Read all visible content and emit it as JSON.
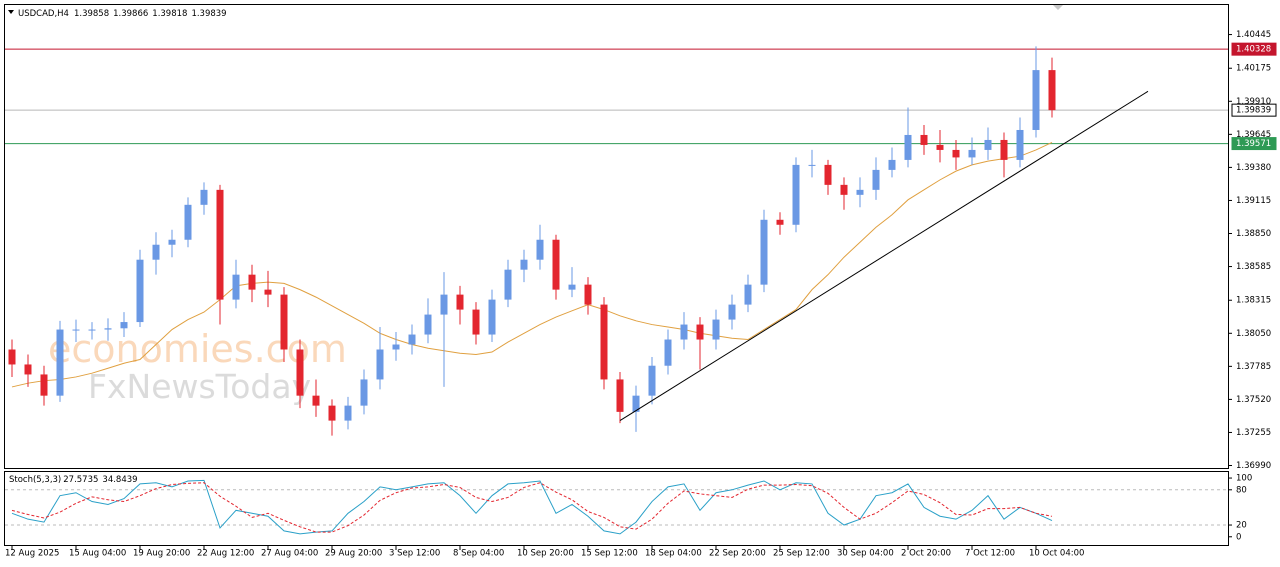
{
  "chart_data": [
    {
      "type": "candlestick",
      "title": "USDCAD,H4",
      "ohlc_header": [
        1.39858,
        1.39866,
        1.39818,
        1.39839
      ],
      "watermark": [
        "economies.com",
        "FxNewsToday"
      ],
      "x": [
        "12 Aug 2025",
        null,
        null,
        null,
        "15 Aug 04:00",
        null,
        null,
        null,
        "19 Aug 20:00",
        null,
        null,
        null,
        "22 Aug 12:00",
        null,
        null,
        null,
        "27 Aug 04:00",
        null,
        null,
        null,
        "29 Aug 20:00",
        null,
        null,
        null,
        "3 Sep 12:00",
        null,
        null,
        null,
        "8 Sep 04:00",
        null,
        null,
        null,
        "10 Sep 20:00",
        null,
        null,
        null,
        "15 Sep 12:00",
        null,
        null,
        null,
        "18 Sep 04:00",
        null,
        null,
        null,
        "22 Sep 20:00",
        null,
        null,
        null,
        "25 Sep 12:00",
        null,
        null,
        null,
        "30 Sep 04:00",
        null,
        null,
        null,
        "2 Oct 20:00",
        null,
        null,
        null,
        "7 Oct 12:00",
        null,
        null,
        null,
        "10 Oct 04:00",
        null
      ],
      "open": [
        1.3792,
        1.378,
        1.3772,
        1.3755,
        1.3808,
        1.3808,
        1.3808,
        1.3809,
        1.3814,
        1.3864,
        1.3876,
        1.388,
        1.3908,
        1.392,
        1.3832,
        1.3852,
        1.384,
        1.3836,
        1.3792,
        1.3755,
        1.3747,
        1.3735,
        1.3747,
        1.3768,
        1.3792,
        1.3796,
        1.3804,
        1.382,
        1.3836,
        1.3824,
        1.3804,
        1.3832,
        1.3856,
        1.3864,
        1.388,
        1.384,
        1.3844,
        1.3828,
        1.3768,
        1.3742,
        1.3755,
        1.3779,
        1.38,
        1.3812,
        1.38,
        1.3816,
        1.3828,
        1.3844,
        1.3896,
        1.3892,
        1.394,
        1.394,
        1.3924,
        1.3916,
        1.392,
        1.3936,
        1.3944,
        1.3964,
        1.3956,
        1.3952,
        1.3946,
        1.3952,
        1.396,
        1.3944,
        1.3968,
        1.4016
      ],
      "high": [
        1.38,
        1.3788,
        1.3779,
        1.3815,
        1.3816,
        1.3814,
        1.3817,
        1.3822,
        1.3872,
        1.3886,
        1.3888,
        1.3914,
        1.3926,
        1.3924,
        1.3864,
        1.386,
        1.3855,
        1.3842,
        1.38,
        1.3768,
        1.3752,
        1.3754,
        1.3776,
        1.381,
        1.3806,
        1.3812,
        1.3833,
        1.3854,
        1.3843,
        1.383,
        1.384,
        1.3864,
        1.3872,
        1.3892,
        1.3884,
        1.3858,
        1.385,
        1.3834,
        1.3774,
        1.3763,
        1.3786,
        1.3808,
        1.3822,
        1.3818,
        1.3824,
        1.3836,
        1.3852,
        1.3904,
        1.3902,
        1.3946,
        1.3952,
        1.3944,
        1.393,
        1.393,
        1.3946,
        1.3954,
        1.3986,
        1.3972,
        1.3968,
        1.396,
        1.3962,
        1.397,
        1.3966,
        1.3978,
        1.4035,
        1.4026
      ],
      "low": [
        1.377,
        1.3762,
        1.3747,
        1.375,
        1.3798,
        1.38,
        1.3799,
        1.3802,
        1.381,
        1.3852,
        1.3866,
        1.3874,
        1.39,
        1.3812,
        1.3825,
        1.383,
        1.3826,
        1.3782,
        1.3745,
        1.3738,
        1.3723,
        1.3728,
        1.374,
        1.376,
        1.3783,
        1.3788,
        1.3797,
        1.3762,
        1.3812,
        1.3796,
        1.3798,
        1.3826,
        1.3846,
        1.3856,
        1.3832,
        1.3834,
        1.382,
        1.376,
        1.3733,
        1.3726,
        1.3748,
        1.3772,
        1.3792,
        1.3776,
        1.3792,
        1.3808,
        1.3822,
        1.3838,
        1.3884,
        1.3886,
        1.393,
        1.3916,
        1.3904,
        1.3906,
        1.3912,
        1.393,
        1.3938,
        1.3948,
        1.3942,
        1.3936,
        1.394,
        1.3944,
        1.393,
        1.3938,
        1.3962,
        1.3978
      ],
      "close": [
        1.378,
        1.3772,
        1.3755,
        1.3808,
        1.3808,
        1.3808,
        1.3809,
        1.3814,
        1.3864,
        1.3876,
        1.388,
        1.3908,
        1.392,
        1.3832,
        1.3852,
        1.384,
        1.3836,
        1.3792,
        1.3755,
        1.3747,
        1.3735,
        1.3747,
        1.3768,
        1.3792,
        1.3796,
        1.3804,
        1.382,
        1.3836,
        1.3824,
        1.3804,
        1.3832,
        1.3856,
        1.3864,
        1.388,
        1.384,
        1.3844,
        1.3828,
        1.3768,
        1.3742,
        1.3755,
        1.3779,
        1.38,
        1.3812,
        1.38,
        1.3816,
        1.3828,
        1.3844,
        1.3896,
        1.3892,
        1.394,
        1.394,
        1.3924,
        1.3916,
        1.392,
        1.3936,
        1.3944,
        1.3964,
        1.3956,
        1.3952,
        1.3946,
        1.3952,
        1.396,
        1.3944,
        1.3968,
        1.4016,
        1.39839
      ],
      "colors": {
        "up": "#6a98e4",
        "down": "#e3262f"
      },
      "ma": {
        "color": "#e0a040",
        "values": [
          1.3762,
          1.3765,
          1.3767,
          1.3768,
          1.377,
          1.3773,
          1.3777,
          1.3781,
          1.3784,
          1.3796,
          1.3808,
          1.3816,
          1.3822,
          1.3832,
          1.3843,
          1.3845,
          1.3846,
          1.3845,
          1.384,
          1.3834,
          1.3827,
          1.382,
          1.3813,
          1.3805,
          1.38,
          1.3796,
          1.3793,
          1.3791,
          1.3789,
          1.3788,
          1.379,
          1.3798,
          1.3805,
          1.3812,
          1.3818,
          1.3823,
          1.3828,
          1.3824,
          1.3819,
          1.3815,
          1.3812,
          1.381,
          1.3808,
          1.3805,
          1.3803,
          1.3801,
          1.38,
          1.3808,
          1.3816,
          1.3824,
          1.384,
          1.3852,
          1.3866,
          1.3878,
          1.389,
          1.39,
          1.3912,
          1.392,
          1.3928,
          1.3935,
          1.394,
          1.3943,
          1.3945,
          1.3947,
          1.3952,
          1.3958
        ]
      },
      "hlines": [
        {
          "value": 1.40328,
          "color": "#c4152d"
        },
        {
          "value": 1.39839,
          "color": "#b8b8b8"
        },
        {
          "value": 1.39571,
          "color": "#2e9a55"
        }
      ],
      "trendline": {
        "x": [
          38,
          71
        ],
        "y": [
          1.3735,
          1.3999
        ],
        "color": "#000000"
      },
      "ylim": [
        1.3697,
        1.4069
      ],
      "yticks": [
        1.40445,
        1.40175,
        {
          "value": 1.3991,
          "label": "1.39910"
        },
        1.39645,
        {
          "value": 1.3938,
          "label": "1.39380"
        },
        1.39115,
        {
          "value": 1.3885,
          "label": "1.38850"
        },
        1.38585,
        1.38315,
        {
          "value": 1.3805,
          "label": "1.38050"
        },
        1.37785,
        {
          "value": 1.3752,
          "label": "1.37520"
        },
        1.37255,
        {
          "value": 1.3699,
          "label": "1.36990"
        }
      ]
    },
    {
      "type": "stochastic",
      "title": "Stoch(5,3,3)",
      "readout": [
        27.5735,
        34.8439
      ],
      "series": [
        {
          "color": "#2aa0c8",
          "values": [
            40,
            30,
            25,
            70,
            75,
            60,
            55,
            65,
            90,
            92,
            85,
            95,
            96,
            15,
            45,
            40,
            35,
            10,
            5,
            8,
            10,
            40,
            60,
            85,
            80,
            85,
            90,
            92,
            70,
            40,
            70,
            90,
            92,
            95,
            40,
            55,
            35,
            10,
            5,
            25,
            60,
            85,
            90,
            45,
            75,
            80,
            88,
            95,
            80,
            92,
            90,
            40,
            20,
            30,
            70,
            75,
            90,
            50,
            35,
            30,
            45,
            70,
            30,
            50,
            40,
            27.5735
          ]
        },
        {
          "color": "#e3262f",
          "dashed": true,
          "values": [
            45,
            38,
            32,
            42,
            57,
            68,
            63,
            60,
            70,
            82,
            89,
            91,
            92,
            69,
            52,
            33,
            40,
            28,
            17,
            8,
            8,
            19,
            37,
            62,
            75,
            83,
            85,
            89,
            84,
            67,
            60,
            67,
            84,
            92,
            76,
            63,
            43,
            33,
            17,
            13,
            30,
            57,
            78,
            73,
            70,
            67,
            81,
            88,
            88,
            89,
            87,
            74,
            50,
            30,
            40,
            58,
            78,
            72,
            58,
            38,
            37,
            48,
            48,
            50,
            40,
            34.8439
          ]
        }
      ],
      "levels": [
        80,
        20
      ],
      "ylim": [
        -14,
        112
      ],
      "yticks": [
        100,
        80,
        20,
        0
      ]
    }
  ]
}
